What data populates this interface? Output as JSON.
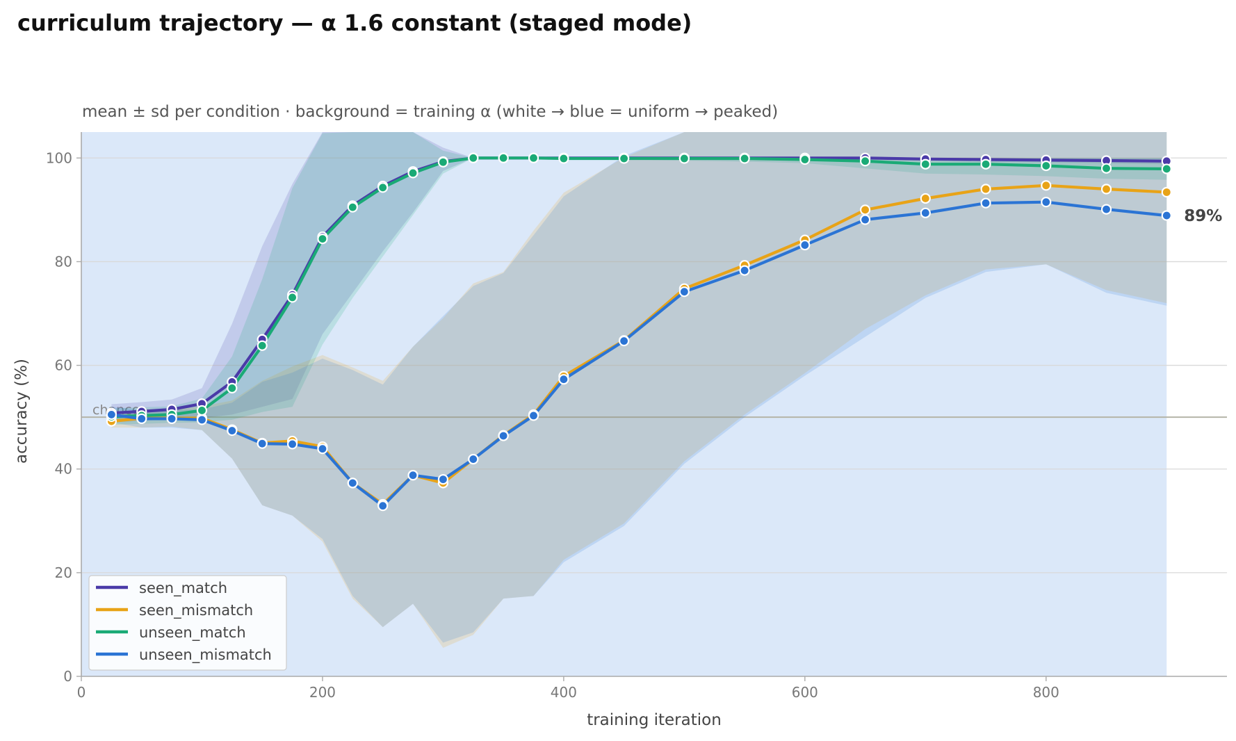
{
  "chart_data": {
    "type": "line",
    "title": "curriculum trajectory — α 1.6 constant (staged mode)",
    "subtitle": "mean ± sd per condition · background = training α (white → blue = uniform → peaked)",
    "xlabel": "training iteration",
    "ylabel": "accuracy (%)",
    "xlim": [
      0,
      950
    ],
    "ylim": [
      0,
      105
    ],
    "xticks": [
      0,
      200,
      400,
      600,
      800
    ],
    "yticks": [
      0,
      20,
      40,
      60,
      80,
      100
    ],
    "grid": "horizontal",
    "background_color": "#dbe8f9",
    "background_range": [
      0,
      900
    ],
    "reference_line": {
      "y": 50,
      "label": "chance",
      "color": "#b5b5a8"
    },
    "end_label": {
      "text": "89%",
      "series": "unseen_mismatch"
    },
    "legend_position": "lower-left",
    "x": [
      25,
      50,
      75,
      100,
      125,
      150,
      175,
      200,
      225,
      250,
      275,
      300,
      325,
      350,
      375,
      400,
      450,
      500,
      550,
      600,
      650,
      700,
      750,
      800,
      850,
      900
    ],
    "series": [
      {
        "name": "seen_match",
        "color": "#4a3aa8",
        "values": [
          50.8,
          51.1,
          51.5,
          52.6,
          56.8,
          65.0,
          73.6,
          84.8,
          90.8,
          94.6,
          97.4,
          99.3,
          100.0,
          100.0,
          100.0,
          100.0,
          100.0,
          100.0,
          100.0,
          100.0,
          100.0,
          99.8,
          99.7,
          99.6,
          99.5,
          99.4
        ],
        "sd_lower": [
          49.0,
          49.3,
          49.6,
          49.8,
          50.5,
          52.0,
          53.5,
          66.0,
          74.0,
          82.0,
          89.5,
          97.5,
          100.0,
          100.0,
          100.0,
          100.0,
          100.0,
          100.0,
          100.0,
          100.0,
          99.8,
          99.5,
          99.3,
          99.2,
          99.0,
          98.8
        ],
        "sd_upper": [
          52.5,
          52.9,
          53.4,
          55.6,
          68.0,
          83.0,
          95.0,
          105.0,
          105.0,
          105.0,
          105.0,
          102.0,
          100.0,
          100.0,
          100.0,
          100.0,
          100.0,
          100.0,
          100.0,
          100.0,
          100.0,
          100.0,
          100.0,
          100.0,
          100.0,
          100.0
        ]
      },
      {
        "name": "seen_mismatch",
        "color": "#e8a317",
        "values": [
          49.2,
          49.8,
          49.8,
          49.8,
          47.6,
          45.0,
          45.4,
          44.3,
          37.3,
          33.2,
          38.8,
          37.3,
          41.9,
          46.5,
          50.5,
          57.9,
          64.8,
          74.8,
          79.3,
          84.2,
          90.0,
          92.2,
          94.0,
          94.7,
          94.0,
          93.4
        ],
        "sd_lower": [
          48.0,
          48.0,
          48.2,
          47.5,
          42.0,
          33.0,
          31.0,
          26.0,
          15.0,
          9.5,
          14.0,
          5.5,
          8.0,
          15.0,
          15.5,
          22.5,
          29.5,
          41.5,
          50.5,
          58.5,
          67.0,
          73.5,
          78.5,
          79.5,
          74.5,
          72.0
        ],
        "sd_upper": [
          50.5,
          51.6,
          51.4,
          52.1,
          53.2,
          57.0,
          59.8,
          62.0,
          59.6,
          57.0,
          63.6,
          69.1,
          75.8,
          78.0,
          86.0,
          93.3,
          100.1,
          105.0,
          105.0,
          105.0,
          105.0,
          105.0,
          105.0,
          105.0,
          105.0,
          105.0
        ]
      },
      {
        "name": "unseen_match",
        "color": "#1aaa76",
        "values": [
          50.1,
          50.3,
          50.5,
          51.3,
          55.6,
          63.8,
          73.1,
          84.4,
          90.5,
          94.3,
          97.1,
          99.2,
          100.0,
          100.0,
          100.0,
          99.9,
          99.9,
          99.9,
          99.9,
          99.7,
          99.4,
          98.8,
          98.8,
          98.5,
          98.0,
          97.9
        ],
        "sd_lower": [
          48.5,
          48.7,
          48.9,
          49.0,
          49.5,
          51.0,
          52.0,
          64.0,
          73.0,
          81.0,
          89.0,
          97.0,
          100.0,
          100.0,
          100.0,
          99.8,
          99.7,
          99.5,
          99.3,
          99.0,
          98.0,
          97.0,
          96.8,
          96.5,
          96.0,
          95.8
        ],
        "sd_upper": [
          51.7,
          51.9,
          52.1,
          53.6,
          61.7,
          76.6,
          94.2,
          104.8,
          105.0,
          105.0,
          105.0,
          101.4,
          100.0,
          100.0,
          100.0,
          100.0,
          100.0,
          100.0,
          100.0,
          100.0,
          100.0,
          100.0,
          100.0,
          100.0,
          100.0,
          100.0
        ]
      },
      {
        "name": "unseen_mismatch",
        "color": "#2b74d4",
        "values": [
          50.5,
          49.7,
          49.7,
          49.5,
          47.4,
          44.9,
          44.8,
          43.9,
          37.3,
          32.9,
          38.8,
          38.0,
          41.9,
          46.4,
          50.3,
          57.3,
          64.7,
          74.2,
          78.3,
          83.2,
          88.1,
          89.4,
          91.3,
          91.5,
          90.1,
          88.9
        ],
        "sd_lower": [
          49.0,
          48.0,
          48.0,
          47.5,
          42.0,
          33.0,
          31.0,
          26.5,
          15.5,
          9.5,
          14.0,
          6.5,
          8.5,
          15.0,
          15.5,
          22.0,
          29.0,
          41.0,
          50.0,
          58.0,
          65.5,
          73.0,
          78.0,
          79.5,
          74.0,
          71.5
        ],
        "sd_upper": [
          52.0,
          51.4,
          51.4,
          51.5,
          52.8,
          56.8,
          58.6,
          61.3,
          59.1,
          56.3,
          63.6,
          69.5,
          75.3,
          77.8,
          85.1,
          92.6,
          100.4,
          105.0,
          105.0,
          105.0,
          105.0,
          105.0,
          105.0,
          105.0,
          105.0,
          105.0
        ]
      }
    ]
  }
}
